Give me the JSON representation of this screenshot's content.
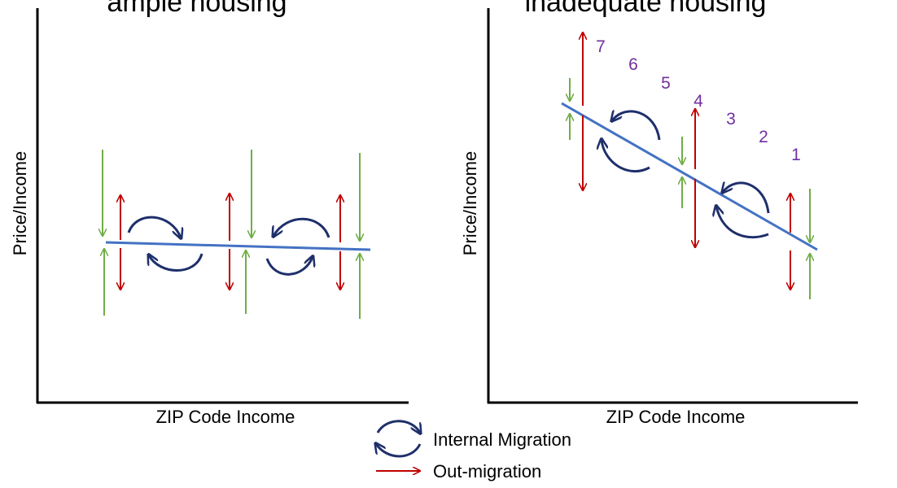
{
  "left_panel": {
    "title": "ample housing",
    "x_axis_label": "ZIP Code Income",
    "y_axis_label": "Price/Income"
  },
  "right_panel": {
    "title": "inadequate housing",
    "x_axis_label": "ZIP Code Income",
    "y_axis_label": "Price/Income",
    "zip_rank_labels": [
      "7",
      "6",
      "5",
      "4",
      "3",
      "2",
      "1"
    ]
  },
  "legend": {
    "internal_migration_label": "Internal Migration",
    "out_migration_label": "Out-migration"
  },
  "colors": {
    "trend_line": "#4472c4",
    "internal_migration": "#1f2f6b",
    "out_migration": "#c00000",
    "in_arrow": "#70ad47",
    "rank_label": "#7030a0",
    "axis": "#000000"
  }
}
